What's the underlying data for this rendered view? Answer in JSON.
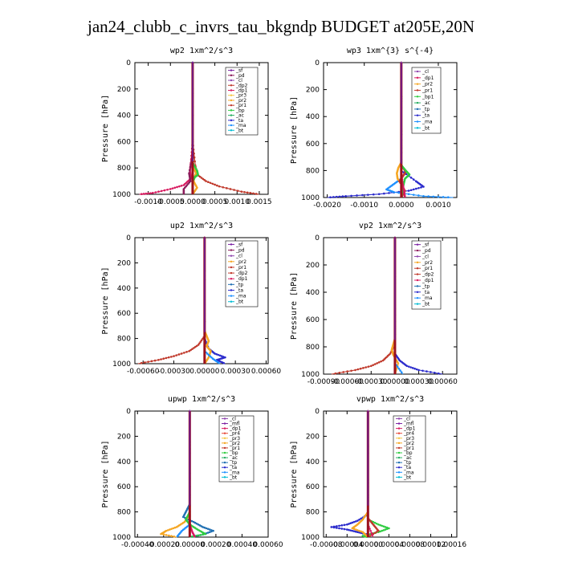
{
  "title": "jan24_clubb_c_invrs_tau_bkgndp  BUDGET at205E,20N",
  "colors": {
    "sf": "#7a1fa2",
    "pd": "#8b1a5a",
    "cl": "#8e44ad",
    "mfl": "#7a1fa2",
    "dp2": "#c0392b",
    "dp1": "#d81b60",
    "pr1": "#c0392b",
    "pr2": "#f5a623",
    "pr3": "#f5c542",
    "pr4": "#e74c3c",
    "bp": "#2ecc40",
    "ac": "#27ae60",
    "tp": "#1f6fb2",
    "ta": "#2b2bcc",
    "ma": "#1e90ff",
    "bt": "#00bcd4"
  },
  "chart_data": [
    {
      "type": "line",
      "name": "wp2",
      "title": "wp2   1xm^2/s^3",
      "ylabel": "Pressure  [hPa]",
      "xlim": [
        -0.0013,
        0.0017
      ],
      "ylim": [
        1000,
        0
      ],
      "xticks": [
        -0.001,
        -0.0005,
        0.0,
        0.0005,
        0.001,
        0.0015
      ],
      "xticklabels": [
        "-0.0010",
        "-0.0005",
        "0.0000",
        "0.0005",
        "0.0010",
        "0.0015"
      ],
      "yticks": [
        0,
        200,
        400,
        600,
        800,
        1000
      ],
      "legend": [
        "_sf",
        "_pd",
        "_cl",
        "_dp2",
        "_dp1",
        "_pr3",
        "_pr2",
        "_pr1",
        "_bp",
        "_ac",
        "_ta",
        "_ma",
        "_bt"
      ],
      "series": [
        {
          "key": "dp1",
          "p": [
            0,
            600,
            760,
            820,
            880,
            930,
            960,
            990,
            1000
          ],
          "x": [
            0,
            0,
            -4e-05,
            -6e-05,
            -4e-05,
            -0.0002,
            -0.0005,
            -0.0009,
            -0.0012
          ]
        },
        {
          "key": "pr1",
          "p": [
            0,
            600,
            780,
            850,
            900,
            940,
            980,
            1000
          ],
          "x": [
            0,
            0,
            6e-05,
            0.0001,
            0.0003,
            0.0006,
            0.0011,
            0.0015
          ]
        },
        {
          "key": "pr2",
          "p": [
            0,
            700,
            800,
            840,
            870,
            900,
            950,
            1000
          ],
          "x": [
            0,
            0,
            2e-05,
            8e-05,
            4e-05,
            2e-05,
            0.0001,
            0.0
          ]
        },
        {
          "key": "bp",
          "p": [
            0,
            760,
            820,
            850,
            870,
            900,
            950,
            1000
          ],
          "x": [
            0,
            0,
            0.0001,
            0.00012,
            5e-05,
            0.0,
            0.0,
            0.0
          ]
        },
        {
          "key": "pd",
          "p": [
            0,
            700,
            840,
            900,
            960,
            1000
          ],
          "x": [
            0,
            0,
            -8e-05,
            -5e-05,
            -0.0002,
            -0.0002
          ]
        },
        {
          "key": "ma",
          "p": [
            0,
            900,
            1000
          ],
          "x": [
            0,
            0,
            0
          ]
        },
        {
          "key": "sf",
          "p": [
            0,
            1000
          ],
          "x": [
            0,
            0
          ]
        }
      ]
    },
    {
      "type": "line",
      "name": "wp3",
      "title": "wp3   1xm^{3} s^{-4}",
      "ylabel": "Pressure  [hPa]",
      "xlim": [
        -0.0021,
        0.0015
      ],
      "ylim": [
        1000,
        0
      ],
      "xticks": [
        -0.002,
        -0.001,
        0.0,
        0.001
      ],
      "xticklabels": [
        "-0.0020",
        "-0.0010",
        "0.0000",
        "0.0010"
      ],
      "yticks": [
        0,
        200,
        400,
        600,
        800,
        1000
      ],
      "legend": [
        "_cl",
        "_dp1",
        "_pr2",
        "_pr1",
        "_bp1",
        "_ac",
        "_tp",
        "_ta",
        "_ma",
        "_bt"
      ],
      "series": [
        {
          "key": "ta",
          "p": [
            0,
            800,
            880,
            920,
            950,
            975,
            990,
            1000
          ],
          "x": [
            0,
            0,
            0.0004,
            0.0006,
            0.0002,
            -0.0006,
            -0.0015,
            -0.002
          ]
        },
        {
          "key": "ma",
          "p": [
            0,
            860,
            900,
            940,
            960,
            990,
            1000
          ],
          "x": [
            0,
            0,
            -0.0002,
            -0.0004,
            -0.0002,
            0.0006,
            0.0014
          ]
        },
        {
          "key": "pr2",
          "p": [
            0,
            740,
            780,
            820,
            860,
            900,
            1000
          ],
          "x": [
            0,
            0,
            -8e-05,
            -0.00012,
            -0.0001,
            0,
            0
          ]
        },
        {
          "key": "pr1",
          "p": [
            0,
            760,
            810,
            840,
            880,
            950,
            1000
          ],
          "x": [
            0,
            0,
            0.00012,
            5e-05,
            -5e-05,
            0.0001,
            0
          ]
        },
        {
          "key": "bp",
          "p": [
            0,
            760,
            800,
            830,
            860,
            920,
            1000
          ],
          "x": [
            0,
            0,
            0.00012,
            0.00022,
            0.0001,
            5e-05,
            0
          ]
        },
        {
          "key": "dp1",
          "p": [
            0,
            800,
            900,
            960,
            1000
          ],
          "x": [
            0,
            0,
            4e-05,
            8e-05,
            0.0001
          ]
        },
        {
          "key": "cl",
          "p": [
            0,
            1000
          ],
          "x": [
            0,
            0
          ]
        }
      ]
    },
    {
      "type": "line",
      "name": "up2",
      "title": "up2   1xm^2/s^3",
      "ylabel": "Pressure  [hPa]",
      "xlim": [
        -0.00068,
        0.00062
      ],
      "ylim": [
        1000,
        0
      ],
      "xticks": [
        -0.0006,
        -0.0003,
        0.0,
        0.0003,
        0.0006
      ],
      "xticklabels": [
        "-0.00060",
        "-0.00030",
        "0.00000",
        "0.00030",
        "0.00060"
      ],
      "yticks": [
        0,
        200,
        400,
        600,
        800,
        1000
      ],
      "legend": [
        "_sf",
        "_pd",
        "_cl",
        "_pr2",
        "_pr1",
        "_dp2",
        "_dp1",
        "_tp",
        "_ta",
        "_ma",
        "_bt"
      ],
      "series": [
        {
          "key": "pr1",
          "p": [
            0,
            780,
            850,
            900,
            940,
            970,
            1000
          ],
          "x": [
            0,
            0,
            -6e-05,
            -0.00015,
            -0.0003,
            -0.00045,
            -0.00065
          ]
        },
        {
          "key": "ta",
          "p": [
            0,
            800,
            880,
            920,
            950,
            970,
            1000
          ],
          "x": [
            0,
            0,
            4e-05,
            0.0001,
            0.0002,
            0.00012,
            0.0002
          ]
        },
        {
          "key": "pr2",
          "p": [
            0,
            740,
            780,
            820,
            860,
            900,
            950,
            1000
          ],
          "x": [
            0,
            0,
            2e-05,
            4e-05,
            2e-05,
            6e-05,
            4e-05,
            0.0
          ]
        },
        {
          "key": "ma",
          "p": [
            0,
            900,
            960,
            1000
          ],
          "x": [
            0,
            0,
            8e-05,
            0.00015
          ]
        },
        {
          "key": "dp2",
          "p": [
            0,
            1000
          ],
          "x": [
            0,
            0
          ]
        },
        {
          "key": "pd",
          "p": [
            0,
            1000
          ],
          "x": [
            0,
            0
          ]
        }
      ]
    },
    {
      "type": "line",
      "name": "vp2",
      "title": "vp2   1xm^2/s^3",
      "ylabel": "Pressure  [hPa]",
      "xlim": [
        -0.0009,
        0.00078
      ],
      "ylim": [
        1000,
        0
      ],
      "xticks": [
        -0.0009,
        -0.0006,
        -0.0003,
        0.0,
        0.0003,
        0.0006
      ],
      "xticklabels": [
        "-0.00090",
        "-0.00060",
        "-0.00030",
        "0.00000",
        "0.00030",
        "0.00060"
      ],
      "yticks": [
        0,
        200,
        400,
        600,
        800,
        1000
      ],
      "legend": [
        "_sf",
        "_pd",
        "_cl",
        "_pr2",
        "_pr1",
        "_dp2",
        "_dp1",
        "_tp",
        "_ta",
        "_ma",
        "_bt"
      ],
      "series": [
        {
          "key": "pr1",
          "p": [
            0,
            780,
            850,
            900,
            940,
            970,
            1000
          ],
          "x": [
            0,
            0,
            -6e-05,
            -0.00015,
            -0.0003,
            -0.0005,
            -0.0008
          ]
        },
        {
          "key": "ta",
          "p": [
            0,
            850,
            900,
            940,
            970,
            1000
          ],
          "x": [
            0,
            0,
            6e-05,
            0.00015,
            0.0003,
            0.0006
          ]
        },
        {
          "key": "pr2",
          "p": [
            0,
            740,
            780,
            820,
            860,
            920,
            1000
          ],
          "x": [
            0,
            0,
            -2e-05,
            -4e-05,
            -2e-05,
            4e-05,
            0.0
          ]
        },
        {
          "key": "ma",
          "p": [
            0,
            920,
            1000
          ],
          "x": [
            0,
            0,
            0.0001
          ]
        },
        {
          "key": "pd",
          "p": [
            0,
            1000
          ],
          "x": [
            0,
            0
          ]
        }
      ]
    },
    {
      "type": "line",
      "name": "upwp",
      "title": "upwp   1xm^2/s^3",
      "ylabel": "Pressure  [hPa]",
      "xlim": [
        -0.00042,
        0.0006
      ],
      "ylim": [
        1000,
        0
      ],
      "xticks": [
        -0.0004,
        -0.0002,
        0.0,
        0.0002,
        0.0004,
        0.0006
      ],
      "xticklabels": [
        "-0.00040",
        "-0.00020",
        "0.00000",
        "0.00020",
        "0.00040",
        "0.00060"
      ],
      "yticks": [
        0,
        200,
        400,
        600,
        800,
        1000
      ],
      "legend": [
        "_cl",
        "_mfl",
        "_dp1",
        "_pr4",
        "_pr3",
        "_pr2",
        "_pr1",
        "_bp",
        "_ac",
        "_tp",
        "_ta",
        "_ma",
        "_bt"
      ],
      "series": [
        {
          "key": "tp",
          "p": [
            0,
            740,
            780,
            840,
            880,
            920,
            950,
            980,
            1000
          ],
          "x": [
            0,
            0,
            -2e-05,
            -5e-05,
            3e-05,
            0.0001,
            0.00018,
            0.0001,
            0.0
          ]
        },
        {
          "key": "pr2",
          "p": [
            0,
            820,
            880,
            920,
            950,
            975,
            1000
          ],
          "x": [
            0,
            0,
            -4e-05,
            -0.0001,
            -0.00018,
            -0.00022,
            -0.0001
          ]
        },
        {
          "key": "bp",
          "p": [
            0,
            800,
            860,
            900,
            940,
            975,
            1000
          ],
          "x": [
            0,
            0,
            -3e-05,
            0.0,
            6e-05,
            0.00012,
            0.0
          ]
        },
        {
          "key": "ma",
          "p": [
            0,
            900,
            950,
            1000
          ],
          "x": [
            0,
            0,
            -6e-05,
            -0.0001
          ]
        },
        {
          "key": "dp1",
          "p": [
            0,
            900,
            960,
            1000
          ],
          "x": [
            0,
            0,
            2e-05,
            4e-05
          ]
        },
        {
          "key": "cl",
          "p": [
            0,
            1000
          ],
          "x": [
            0,
            0
          ]
        }
      ]
    },
    {
      "type": "line",
      "name": "vpwp",
      "title": "vpwp   1xm^2/s^3",
      "ylabel": "Pressure  [hPa]",
      "xlim": [
        -8.5e-05,
        0.00017
      ],
      "ylim": [
        1000,
        0
      ],
      "xticks": [
        -8e-05,
        -4e-05,
        0.0,
        4e-05,
        8e-05,
        0.00012,
        0.00016
      ],
      "xticklabels": [
        "-0.00008",
        "-0.00004",
        "0.00000",
        "0.00004",
        "0.00008",
        "0.00012",
        "0.00016"
      ],
      "yticks": [
        0,
        200,
        400,
        600,
        800,
        1000
      ],
      "legend": [
        "_cl",
        "_mfl",
        "_dp1",
        "_pr4",
        "_pr3",
        "_pr2",
        "_pr1",
        "_bp",
        "_ac",
        "_tp",
        "_ta",
        "_ma",
        "_bt"
      ],
      "series": [
        {
          "key": "ta",
          "p": [
            0,
            820,
            870,
            900,
            920,
            940,
            960,
            980,
            1000
          ],
          "x": [
            0,
            0,
            -2e-05,
            -4e-05,
            -7e-05,
            -4e-05,
            -2e-05,
            0.0,
            0.0
          ]
        },
        {
          "key": "bp",
          "p": [
            0,
            860,
            900,
            930,
            960,
            990,
            1000
          ],
          "x": [
            0,
            0,
            2e-05,
            4e-05,
            2e-05,
            -1e-05,
            0.0
          ]
        },
        {
          "key": "pr2",
          "p": [
            0,
            800,
            860,
            900,
            930,
            960,
            1000
          ],
          "x": [
            0,
            0,
            -1e-05,
            -2e-05,
            -3e-05,
            -1e-05,
            0.0
          ]
        },
        {
          "key": "pr1",
          "p": [
            0,
            850,
            900,
            950,
            1000
          ],
          "x": [
            0,
            0,
            1e-05,
            2e-05,
            0.0
          ]
        },
        {
          "key": "dp1",
          "p": [
            0,
            900,
            1000
          ],
          "x": [
            0,
            0,
            1e-05
          ]
        },
        {
          "key": "cl",
          "p": [
            0,
            1000
          ],
          "x": [
            0,
            0
          ]
        }
      ]
    }
  ]
}
